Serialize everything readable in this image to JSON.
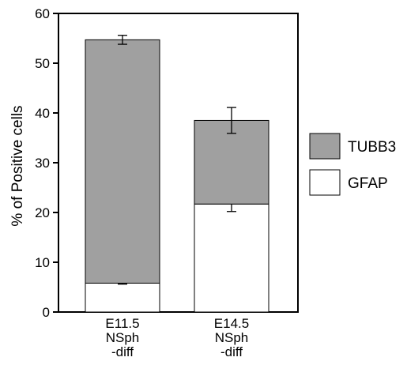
{
  "chart_data": {
    "type": "bar",
    "stacked": true,
    "title": "",
    "ylabel": "% of Positive cells",
    "xlabel": "",
    "ylim": [
      0,
      60
    ],
    "yticks": [
      0,
      10,
      20,
      30,
      40,
      50,
      60
    ],
    "categories": [
      [
        "E11.5",
        "NSph",
        "-diff"
      ],
      [
        "E14.5",
        "NSph",
        "-diff"
      ]
    ],
    "series": [
      {
        "name": "GFAP",
        "color": "#ffffff",
        "values": [
          5.8,
          21.7
        ],
        "error": [
          0.2,
          1.5
        ]
      },
      {
        "name": "TUBB3",
        "color": "#a0a0a0",
        "values": [
          48.9,
          16.8
        ],
        "error": [
          0.9,
          2.6
        ]
      }
    ],
    "legend": {
      "position": "right",
      "order": [
        "TUBB3",
        "GFAP"
      ]
    }
  }
}
